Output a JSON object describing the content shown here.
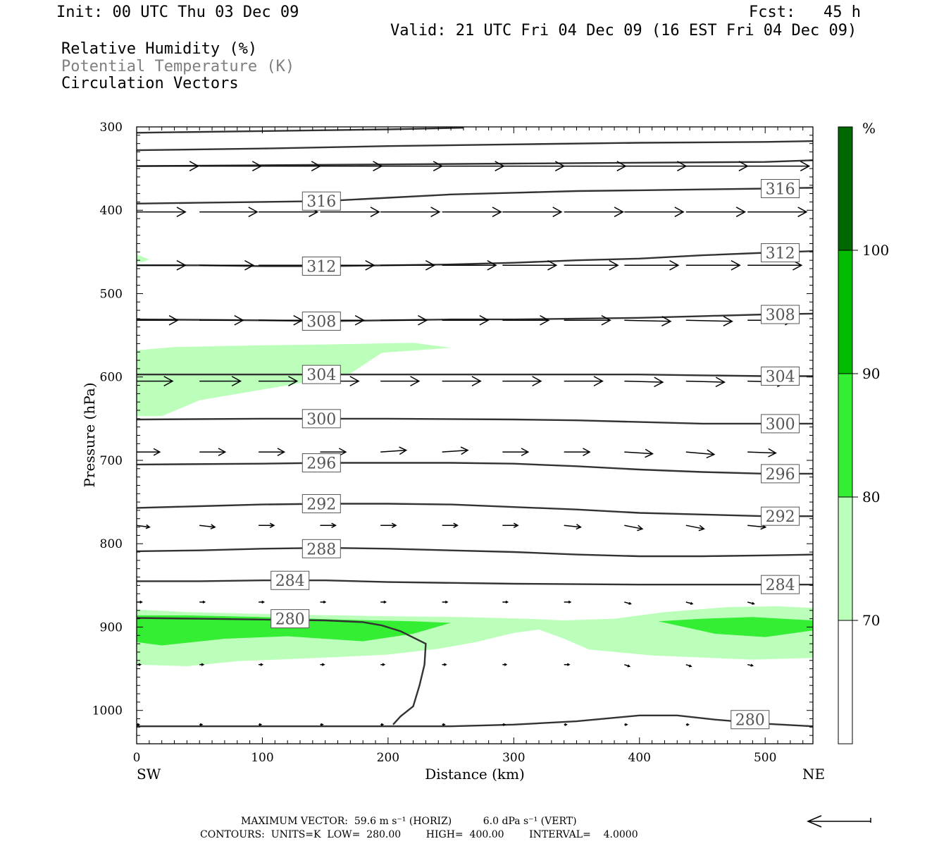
{
  "header": {
    "init": "Init: 00 UTC Thu 03 Dec 09",
    "fcst": "Fcst:   45 h",
    "valid": "Valid: 21 UTC Fri 04 Dec 09 (16 EST Fri 04 Dec 09)",
    "fields": [
      "Relative Humidity (%)",
      "Potential Temperature (K)",
      "Circulation Vectors"
    ],
    "field_colors": [
      "#000000",
      "#7f7f7f",
      "#000000"
    ]
  },
  "footer": {
    "max_vector_line": "MAXIMUM VECTOR:  59.6 m s⁻¹ (HORIZ)          6.0 dPa s⁻¹ (VERT)",
    "contours_line": "CONTOURS:  UNITS=K  LOW=  280.00        HIGH=  400.00        INTERVAL=    4.0000"
  },
  "chart_data": {
    "type": "contour-cross-section",
    "xlabel": "Distance (km)",
    "ylabel": "Pressure (hPa)",
    "xlim": [
      0,
      538
    ],
    "ylim": [
      1040,
      300
    ],
    "x_ticks": [
      0,
      100,
      200,
      300,
      400,
      500
    ],
    "y_ticks": [
      300,
      400,
      500,
      600,
      700,
      800,
      900,
      1000
    ],
    "x_end_labels": {
      "left": "SW",
      "right": "NE"
    },
    "colorbar": {
      "unit_label": "%",
      "levels": [
        70,
        80,
        90,
        100
      ],
      "colors": [
        "#ffffff",
        "#bbffbb",
        "#33ee33",
        "#00bb00",
        "#006600"
      ],
      "range": [
        60,
        110
      ]
    },
    "rh_fill_regions": [
      {
        "level": 70,
        "points": [
          [
            0,
            568
          ],
          [
            30,
            564
          ],
          [
            100,
            562
          ],
          [
            150,
            561
          ],
          [
            220,
            559
          ],
          [
            250,
            565
          ],
          [
            195,
            571
          ],
          [
            170,
            596
          ],
          [
            120,
            610
          ],
          [
            50,
            628
          ],
          [
            20,
            647
          ],
          [
            0,
            647
          ]
        ]
      },
      {
        "level": 70,
        "points": [
          [
            0,
            879
          ],
          [
            40,
            882
          ],
          [
            120,
            885
          ],
          [
            200,
            887
          ],
          [
            260,
            888
          ],
          [
            310,
            890
          ],
          [
            340,
            892
          ],
          [
            380,
            890
          ],
          [
            420,
            882
          ],
          [
            470,
            876
          ],
          [
            510,
            875
          ],
          [
            538,
            877
          ],
          [
            538,
            937
          ],
          [
            490,
            939
          ],
          [
            410,
            934
          ],
          [
            360,
            927
          ],
          [
            340,
            914
          ],
          [
            320,
            903
          ],
          [
            300,
            907
          ],
          [
            270,
            918
          ],
          [
            240,
            926
          ],
          [
            200,
            933
          ],
          [
            160,
            936
          ],
          [
            80,
            941
          ],
          [
            40,
            947
          ],
          [
            0,
            945
          ]
        ]
      },
      {
        "level": 80,
        "points": [
          [
            0,
            886
          ],
          [
            40,
            886
          ],
          [
            100,
            888
          ],
          [
            160,
            891
          ],
          [
            220,
            893
          ],
          [
            250,
            895
          ],
          [
            220,
            908
          ],
          [
            180,
            917
          ],
          [
            120,
            911
          ],
          [
            70,
            914
          ],
          [
            20,
            922
          ],
          [
            0,
            918
          ]
        ]
      },
      {
        "level": 80,
        "points": [
          [
            415,
            893
          ],
          [
            450,
            890
          ],
          [
            490,
            888
          ],
          [
            538,
            892
          ],
          [
            538,
            904
          ],
          [
            500,
            912
          ],
          [
            460,
            908
          ]
        ]
      },
      {
        "level": 70,
        "points": [
          [
            0,
            453
          ],
          [
            10,
            459
          ],
          [
            5,
            462
          ],
          [
            0,
            462
          ]
        ]
      }
    ],
    "isentropes": [
      {
        "label": "280",
        "points": [
          [
            0,
            889
          ],
          [
            50,
            890
          ],
          [
            100,
            891
          ],
          [
            150,
            892
          ],
          [
            180,
            894
          ],
          [
            195,
            898
          ],
          [
            210,
            905
          ],
          [
            230,
            920
          ],
          [
            229,
            945
          ],
          [
            225,
            970
          ],
          [
            220,
            995
          ],
          [
            210,
            1007
          ],
          [
            204,
            1017
          ]
        ]
      },
      {
        "label": "280",
        "points": [
          [
            0,
            1019
          ],
          [
            100,
            1019
          ],
          [
            200,
            1019
          ],
          [
            250,
            1019
          ],
          [
            300,
            1017
          ],
          [
            350,
            1013
          ],
          [
            400,
            1006
          ],
          [
            430,
            1006
          ],
          [
            460,
            1011
          ],
          [
            500,
            1016
          ],
          [
            538,
            1019
          ]
        ]
      },
      {
        "label": "284",
        "points": [
          [
            0,
            845
          ],
          [
            50,
            845
          ],
          [
            100,
            844
          ],
          [
            150,
            844
          ],
          [
            200,
            846
          ],
          [
            300,
            848
          ],
          [
            400,
            849
          ],
          [
            538,
            849
          ]
        ]
      },
      {
        "label": "288",
        "points": [
          [
            0,
            809
          ],
          [
            50,
            808
          ],
          [
            100,
            806
          ],
          [
            150,
            805
          ],
          [
            200,
            806
          ],
          [
            250,
            808
          ],
          [
            300,
            810
          ],
          [
            350,
            813
          ],
          [
            400,
            815
          ],
          [
            450,
            815
          ],
          [
            500,
            814
          ],
          [
            538,
            813
          ]
        ]
      },
      {
        "label": "292",
        "points": [
          [
            0,
            757
          ],
          [
            50,
            755
          ],
          [
            100,
            753
          ],
          [
            150,
            752
          ],
          [
            200,
            752
          ],
          [
            250,
            753
          ],
          [
            300,
            756
          ],
          [
            350,
            759
          ],
          [
            400,
            763
          ],
          [
            450,
            765
          ],
          [
            500,
            767
          ],
          [
            538,
            767
          ]
        ]
      },
      {
        "label": "296",
        "points": [
          [
            0,
            705
          ],
          [
            100,
            704
          ],
          [
            150,
            703
          ],
          [
            200,
            703
          ],
          [
            250,
            703
          ],
          [
            300,
            704
          ],
          [
            350,
            707
          ],
          [
            400,
            711
          ],
          [
            450,
            714
          ],
          [
            500,
            716
          ],
          [
            538,
            716
          ]
        ]
      },
      {
        "label": "300",
        "points": [
          [
            0,
            651
          ],
          [
            100,
            650
          ],
          [
            200,
            650
          ],
          [
            300,
            651
          ],
          [
            350,
            652
          ],
          [
            400,
            654
          ],
          [
            450,
            656
          ],
          [
            500,
            656
          ],
          [
            538,
            656
          ]
        ]
      },
      {
        "label": "304",
        "points": [
          [
            0,
            597
          ],
          [
            100,
            597
          ],
          [
            200,
            597
          ],
          [
            300,
            597
          ],
          [
            400,
            597
          ],
          [
            450,
            598
          ],
          [
            500,
            599
          ],
          [
            538,
            599
          ]
        ]
      },
      {
        "label": "308",
        "points": [
          [
            0,
            531
          ],
          [
            100,
            532
          ],
          [
            150,
            533
          ],
          [
            200,
            532
          ],
          [
            250,
            531
          ],
          [
            300,
            531
          ],
          [
            400,
            529
          ],
          [
            450,
            527
          ],
          [
            500,
            525
          ],
          [
            538,
            524
          ]
        ]
      },
      {
        "label": "312",
        "points": [
          [
            0,
            466
          ],
          [
            50,
            466
          ],
          [
            100,
            467
          ],
          [
            150,
            467
          ],
          [
            200,
            466
          ],
          [
            250,
            465
          ],
          [
            300,
            463
          ],
          [
            350,
            460
          ],
          [
            400,
            458
          ],
          [
            450,
            454
          ],
          [
            500,
            451
          ],
          [
            538,
            449
          ]
        ]
      },
      {
        "label": "316",
        "points": [
          [
            0,
            392
          ],
          [
            50,
            391
          ],
          [
            100,
            390
          ],
          [
            150,
            389
          ],
          [
            200,
            385
          ],
          [
            250,
            381
          ],
          [
            300,
            379
          ],
          [
            350,
            377
          ],
          [
            400,
            376
          ],
          [
            450,
            375
          ],
          [
            500,
            374
          ],
          [
            538,
            373
          ]
        ]
      },
      {
        "label": "",
        "points": [
          [
            0,
            347
          ],
          [
            100,
            346
          ],
          [
            200,
            345
          ],
          [
            300,
            344
          ],
          [
            400,
            343
          ],
          [
            500,
            342
          ],
          [
            538,
            340
          ]
        ]
      },
      {
        "label": "",
        "points": [
          [
            0,
            328
          ],
          [
            100,
            326
          ],
          [
            200,
            323
          ],
          [
            300,
            321
          ],
          [
            400,
            319
          ],
          [
            500,
            318
          ],
          [
            538,
            317
          ]
        ]
      },
      {
        "label": "",
        "points": [
          [
            0,
            307
          ],
          [
            100,
            305
          ],
          [
            200,
            303
          ],
          [
            260,
            301
          ]
        ]
      }
    ],
    "isentrope_label_positions": [
      {
        "label": "280",
        "x": 122,
        "p": 890
      },
      {
        "label": "280",
        "x": 488,
        "p": 1011
      },
      {
        "label": "284",
        "x": 122,
        "p": 844
      },
      {
        "label": "284",
        "x": 512,
        "p": 849
      },
      {
        "label": "288",
        "x": 147,
        "p": 806
      },
      {
        "label": "292",
        "x": 147,
        "p": 752
      },
      {
        "label": "292",
        "x": 512,
        "p": 767
      },
      {
        "label": "296",
        "x": 147,
        "p": 703
      },
      {
        "label": "296",
        "x": 512,
        "p": 716
      },
      {
        "label": "300",
        "x": 147,
        "p": 650
      },
      {
        "label": "300",
        "x": 512,
        "p": 656
      },
      {
        "label": "304",
        "x": 147,
        "p": 597
      },
      {
        "label": "304",
        "x": 512,
        "p": 599
      },
      {
        "label": "308",
        "x": 147,
        "p": 533
      },
      {
        "label": "308",
        "x": 512,
        "p": 525
      },
      {
        "label": "312",
        "x": 147,
        "p": 467
      },
      {
        "label": "312",
        "x": 512,
        "p": 451
      },
      {
        "label": "316",
        "x": 147,
        "p": 389
      },
      {
        "label": "316",
        "x": 512,
        "p": 374
      }
    ],
    "vector_columns_km": [
      0,
      50,
      97,
      146,
      194,
      243,
      291,
      340,
      388,
      437,
      486
    ],
    "vector_rows": [
      {
        "p": 347,
        "u": [
          48,
          48,
          48,
          48,
          48,
          48,
          48,
          48,
          48,
          48,
          48
        ],
        "w": [
          0,
          0,
          0,
          0,
          0,
          0,
          0,
          0,
          0,
          0,
          0
        ]
      },
      {
        "p": 402,
        "u": [
          38,
          45,
          46,
          46,
          46,
          46,
          46,
          46,
          46,
          46,
          46
        ],
        "w": [
          0,
          0,
          0,
          0,
          0,
          0,
          0,
          0,
          0,
          0,
          0
        ]
      },
      {
        "p": 466,
        "u": [
          38,
          42,
          42,
          42,
          42,
          42,
          42,
          42,
          42,
          42,
          42
        ],
        "w": [
          0,
          0,
          0,
          0,
          0,
          0,
          0,
          0,
          0,
          0,
          0
        ]
      },
      {
        "p": 532,
        "u": [
          32,
          34,
          34,
          34,
          36,
          36,
          36,
          36,
          36,
          36,
          36
        ],
        "w": [
          0,
          0,
          0,
          0,
          0,
          0,
          0,
          0,
          0.3,
          0.3,
          0
        ]
      },
      {
        "p": 605,
        "u": [
          28,
          32,
          30,
          30,
          30,
          30,
          30,
          30,
          30,
          30,
          30
        ],
        "w": [
          0,
          0,
          0,
          0,
          0,
          0,
          0,
          0,
          0.3,
          0.3,
          0.3
        ]
      },
      {
        "p": 690,
        "u": [
          18,
          20,
          20,
          20,
          20,
          20,
          20,
          20,
          22,
          22,
          22
        ],
        "w": [
          0,
          0,
          0,
          0,
          -0.5,
          -0.5,
          0,
          0,
          0.5,
          0.7,
          0.3
        ]
      },
      {
        "p": 778,
        "u": [
          10,
          12,
          12,
          12,
          12,
          12,
          12,
          13,
          14,
          14,
          14
        ],
        "w": [
          0.5,
          0.5,
          0,
          0,
          0,
          0,
          0,
          0.5,
          1,
          1,
          0.5
        ]
      },
      {
        "p": 870,
        "u": [
          4,
          4,
          4,
          4,
          4,
          4,
          4,
          5,
          5,
          5,
          5
        ],
        "w": [
          0,
          0,
          0,
          0,
          0,
          0,
          0,
          0,
          0.5,
          0.5,
          0.5
        ]
      },
      {
        "p": 945,
        "u": [
          3,
          3,
          3,
          3,
          3,
          3,
          3,
          4,
          4,
          4,
          4
        ],
        "w": [
          0,
          0,
          0,
          0,
          0,
          0,
          0,
          0,
          0.5,
          0.5,
          0.3
        ]
      },
      {
        "p": 1017,
        "u": [
          2,
          2,
          2,
          2,
          2,
          2,
          2,
          2,
          2,
          2,
          2
        ],
        "w": [
          0,
          0,
          0,
          0,
          0,
          0,
          0,
          0,
          0,
          0,
          0
        ]
      }
    ]
  }
}
